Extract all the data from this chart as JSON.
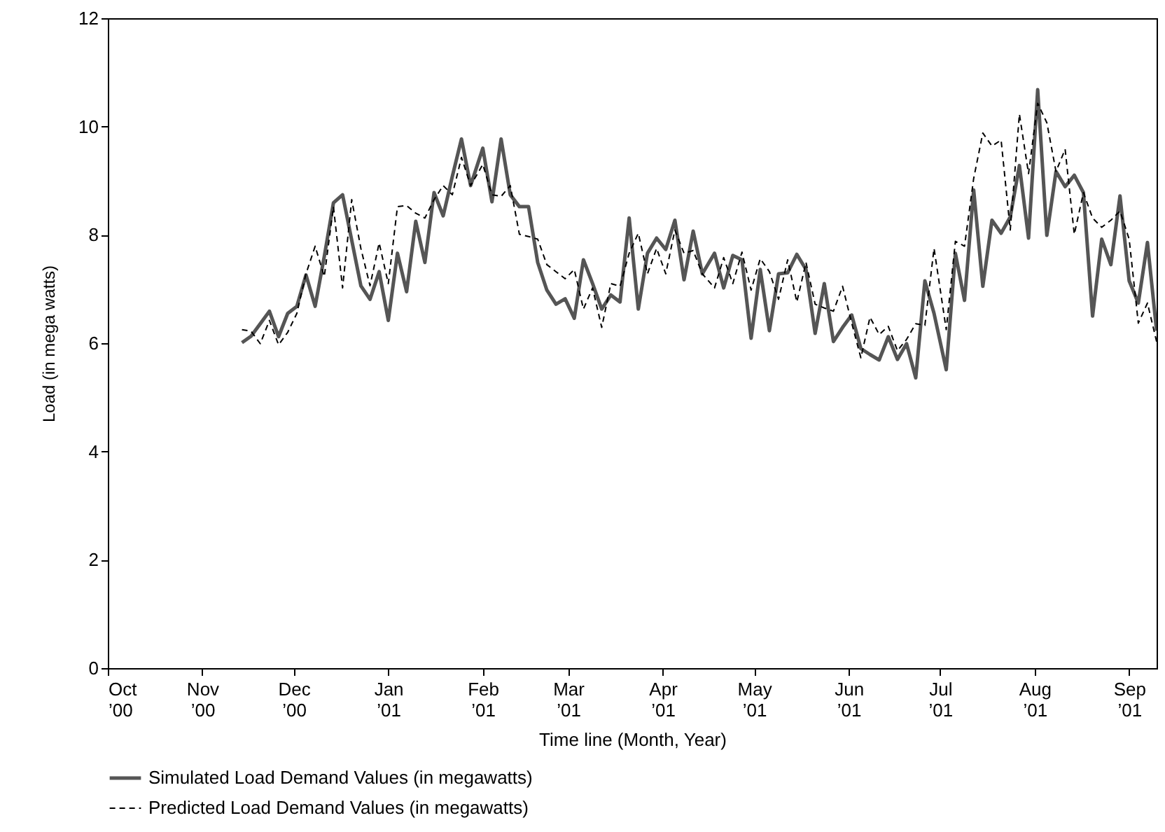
{
  "chart_data": {
    "type": "line",
    "xlabel": "Time line (Month, Year)",
    "ylabel": "Load (in mega watts)",
    "x": [
      "2000-11-14",
      "2000-11-17",
      "2000-11-20",
      "2000-11-23",
      "2000-11-26",
      "2000-11-29",
      "2000-12-02",
      "2000-12-05",
      "2000-12-08",
      "2000-12-11",
      "2000-12-14",
      "2000-12-17",
      "2000-12-20",
      "2000-12-23",
      "2000-12-26",
      "2000-12-29",
      "2001-01-01",
      "2001-01-04",
      "2001-01-07",
      "2001-01-10",
      "2001-01-13",
      "2001-01-16",
      "2001-01-19",
      "2001-01-22",
      "2001-01-25",
      "2001-01-28",
      "2001-02-01",
      "2001-02-04",
      "2001-02-07",
      "2001-02-10",
      "2001-02-13",
      "2001-02-16",
      "2001-02-19",
      "2001-02-22",
      "2001-02-25",
      "2001-02-28",
      "2001-03-03",
      "2001-03-06",
      "2001-03-09",
      "2001-03-12",
      "2001-03-15",
      "2001-03-18",
      "2001-03-21",
      "2001-03-24",
      "2001-03-27",
      "2001-03-30",
      "2001-04-02",
      "2001-04-05",
      "2001-04-08",
      "2001-04-11",
      "2001-04-14",
      "2001-04-18",
      "2001-04-21",
      "2001-04-24",
      "2001-04-27",
      "2001-04-30",
      "2001-05-03",
      "2001-05-06",
      "2001-05-09",
      "2001-05-12",
      "2001-05-15",
      "2001-05-18",
      "2001-05-21",
      "2001-05-24",
      "2001-05-27",
      "2001-05-30",
      "2001-06-02",
      "2001-06-05",
      "2001-06-08",
      "2001-06-11",
      "2001-06-14",
      "2001-06-17",
      "2001-06-20",
      "2001-06-23",
      "2001-06-26",
      "2001-06-29",
      "2001-07-03",
      "2001-07-06",
      "2001-07-09",
      "2001-07-12",
      "2001-07-15",
      "2001-07-18",
      "2001-07-21",
      "2001-07-24",
      "2001-07-27",
      "2001-07-30",
      "2001-08-02",
      "2001-08-05",
      "2001-08-08",
      "2001-08-11",
      "2001-08-14",
      "2001-08-17",
      "2001-08-20",
      "2001-08-23",
      "2001-08-26",
      "2001-08-29",
      "2001-09-01",
      "2001-09-04",
      "2001-09-07",
      "2001-09-10"
    ],
    "series": [
      {
        "name": "Simulated Load Demand Values (in megawatts)",
        "color": "#555555",
        "line_style": "solid",
        "values": [
          6.01,
          6.13,
          6.36,
          6.59,
          6.12,
          6.55,
          6.68,
          7.26,
          6.68,
          7.6,
          8.59,
          8.74,
          7.9,
          7.06,
          6.81,
          7.32,
          6.42,
          7.66,
          6.95,
          8.25,
          7.49,
          8.78,
          8.35,
          9.08,
          9.77,
          8.91,
          9.6,
          8.61,
          9.77,
          8.74,
          8.52,
          8.52,
          7.49,
          6.98,
          6.72,
          6.82,
          6.46,
          7.54,
          7.1,
          6.63,
          6.89,
          6.76,
          8.31,
          6.63,
          7.66,
          7.94,
          7.73,
          8.27,
          7.17,
          8.07,
          7.28,
          7.66,
          7.02,
          7.62,
          7.54,
          6.09,
          7.36,
          6.23,
          7.28,
          7.3,
          7.64,
          7.36,
          6.18,
          7.1,
          6.03,
          6.29,
          6.52,
          5.9,
          5.79,
          5.69,
          6.12,
          5.7,
          5.99,
          5.36,
          7.15,
          6.55,
          5.51,
          7.66,
          6.79,
          8.83,
          7.05,
          8.27,
          8.03,
          8.33,
          9.28,
          7.94,
          10.68,
          7.99,
          9.17,
          8.89,
          9.1,
          8.78,
          6.5,
          7.92,
          7.45,
          8.72,
          7.15,
          6.74,
          7.86,
          6.23
        ]
      },
      {
        "name": "Predicted Load Demand Values (in megawatts)",
        "color": "#000000",
        "line_style": "dashed",
        "values": [
          6.25,
          6.22,
          5.99,
          6.42,
          5.97,
          6.2,
          6.55,
          7.28,
          7.79,
          7.23,
          8.52,
          7.02,
          8.65,
          7.75,
          7.06,
          7.85,
          7.1,
          8.52,
          8.54,
          8.4,
          8.31,
          8.65,
          8.91,
          8.74,
          9.43,
          8.91,
          9.3,
          8.74,
          8.71,
          8.91,
          8.01,
          7.97,
          7.92,
          7.45,
          7.32,
          7.19,
          7.36,
          6.63,
          7.02,
          6.29,
          7.1,
          7.05,
          7.66,
          8.03,
          7.28,
          7.75,
          7.28,
          8.09,
          7.66,
          7.71,
          7.28,
          7.02,
          7.58,
          7.1,
          7.68,
          6.98,
          7.56,
          7.32,
          6.81,
          7.54,
          6.76,
          7.49,
          6.72,
          6.65,
          6.59,
          7.05,
          6.37,
          5.73,
          6.48,
          6.16,
          6.31,
          5.86,
          6.07,
          6.36,
          6.33,
          7.75,
          6.25,
          7.88,
          7.79,
          9.04,
          9.88,
          9.64,
          9.75,
          8.09,
          10.23,
          9.13,
          10.43,
          10.07,
          9.17,
          9.58,
          8.01,
          8.78,
          8.31,
          8.14,
          8.27,
          8.44,
          7.92,
          6.37,
          6.74,
          6.03
        ]
      }
    ],
    "xlim": [
      "2000-10-01",
      "2001-09-10"
    ],
    "xticks": [
      {
        "value": "2000-10-01",
        "label": "Oct ’00"
      },
      {
        "value": "2000-11-01",
        "label": "Nov ’00"
      },
      {
        "value": "2000-12-01",
        "label": "Dec ’00"
      },
      {
        "value": "2001-01-01",
        "label": "Jan ’01"
      },
      {
        "value": "2001-02-01",
        "label": "Feb ’01"
      },
      {
        "value": "2001-03-01",
        "label": "Mar ’01"
      },
      {
        "value": "2001-04-01",
        "label": "Apr ’01"
      },
      {
        "value": "2001-05-01",
        "label": "May ’01"
      },
      {
        "value": "2001-06-01",
        "label": "Jun ’01"
      },
      {
        "value": "2001-07-01",
        "label": "Jul ’01"
      },
      {
        "value": "2001-08-01",
        "label": "Aug ’01"
      },
      {
        "value": "2001-09-01",
        "label": "Sep ’01"
      }
    ],
    "ylim": [
      0,
      12
    ],
    "yticks": [
      0,
      2,
      4,
      6,
      8,
      10,
      12
    ],
    "grid": false,
    "legend": "bottom"
  }
}
